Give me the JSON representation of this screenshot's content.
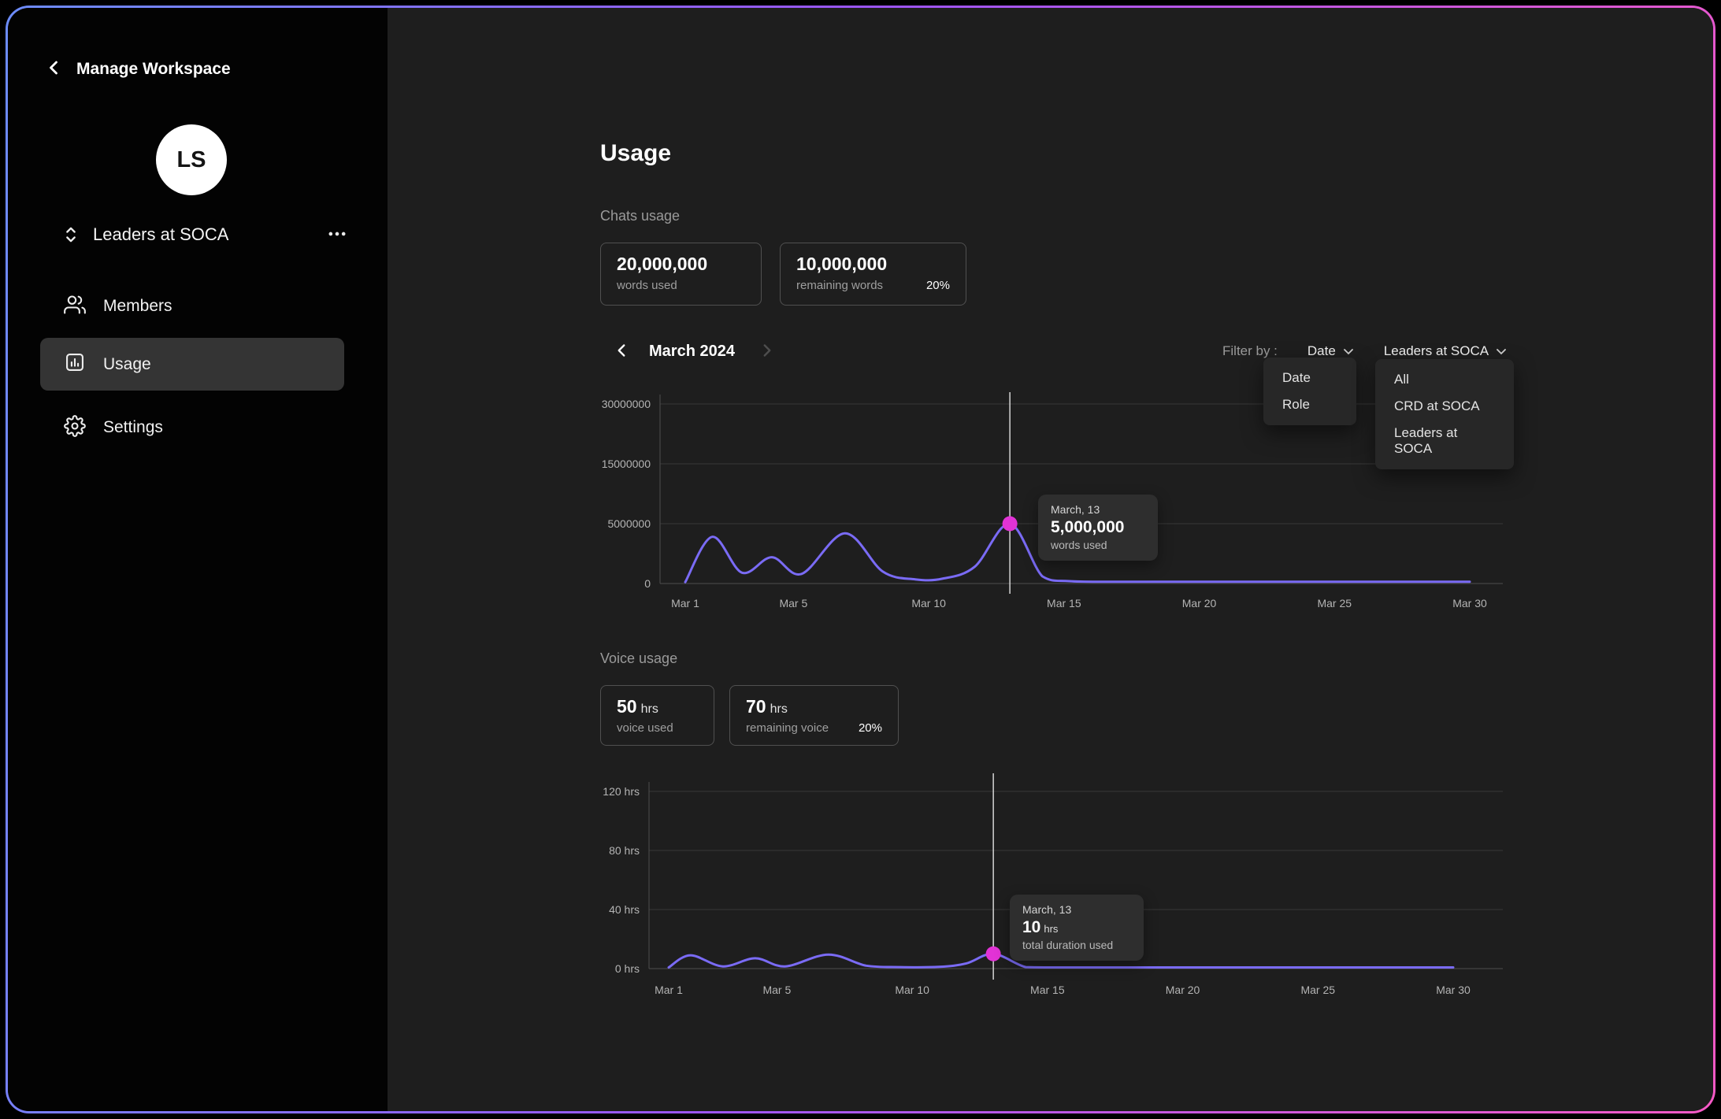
{
  "theme": {
    "frame_gradient": [
      "#6C8CFB",
      "#9A55F5",
      "#F659C6"
    ],
    "line_color": "#7A6BF5",
    "dot_color": "#E233D6",
    "sidebar_bg": "#030303",
    "content_bg": "#1E1E1E"
  },
  "sidebar": {
    "title": "Manage Workspace",
    "avatar_initials": "LS",
    "workspace": {
      "name": "Leaders at SOCA"
    },
    "items": [
      {
        "label": "Members",
        "icon": "users-icon",
        "selected": false
      },
      {
        "label": "Usage",
        "icon": "bar-chart-icon",
        "selected": true
      },
      {
        "label": "Settings",
        "icon": "gear-icon",
        "selected": false
      }
    ]
  },
  "main": {
    "title": "Usage",
    "chats_section": {
      "label": "Chats usage",
      "cards": [
        {
          "value": "20,000,000",
          "label": "words used"
        },
        {
          "value": "10,000,000",
          "label": "remaining words",
          "badge": "20%"
        }
      ]
    },
    "period": {
      "label": "March 2024"
    },
    "filter": {
      "label": "Filter by :",
      "selects": [
        {
          "value": "Date",
          "menu": [
            "Date",
            "Role"
          ]
        },
        {
          "value": "Leaders at SOCA",
          "menu": [
            "All",
            "CRD at SOCA",
            "Leaders at SOCA"
          ]
        }
      ]
    },
    "voice_section": {
      "label": "Voice usage",
      "cards": [
        {
          "value": "50",
          "unit": "hrs",
          "label": "voice used"
        },
        {
          "value": "70",
          "unit": "hrs",
          "label": "remaining voice",
          "badge": "20%"
        }
      ]
    }
  },
  "chart_data": [
    {
      "id": "chats-usage",
      "type": "line",
      "title": "March 2024",
      "legend_position": "none",
      "grid": "horizontal",
      "x_range": [
        1,
        30
      ],
      "x_tick_values": [
        1,
        5,
        10,
        15,
        20,
        25,
        30
      ],
      "x_tick_labels": [
        "Mar 1",
        "Mar 5",
        "Mar 10",
        "Mar 15",
        "Mar 20",
        "Mar 25",
        "Mar 30"
      ],
      "y_tick_values": [
        0,
        5000000,
        15000000,
        30000000
      ],
      "y_tick_labels": [
        "0",
        "5000000",
        "15000000",
        "30000000"
      ],
      "line_color": "#7A6BF5",
      "dot_color": "#E233D6",
      "series": [
        {
          "name": "words used",
          "x": [
            1,
            2,
            3.1,
            4.2,
            5.3,
            6.9,
            8.3,
            9.5,
            10.5,
            11.7,
            13,
            14.2,
            15.2,
            17,
            20,
            25,
            30
          ],
          "y": [
            120000,
            3900000,
            900000,
            2200000,
            800000,
            4200000,
            1000000,
            350000,
            400000,
            1400000,
            5000000,
            600000,
            200000,
            150000,
            150000,
            150000,
            150000
          ]
        }
      ],
      "highlight": {
        "x": 13,
        "y": 5000000,
        "date": "March, 13",
        "value": "5,000,000",
        "label": "words used"
      }
    },
    {
      "id": "voice-usage",
      "type": "line",
      "title": "",
      "legend_position": "none",
      "grid": "horizontal",
      "x_range": [
        1,
        30
      ],
      "x_tick_values": [
        1,
        5,
        10,
        15,
        20,
        25,
        30
      ],
      "x_tick_labels": [
        "Mar 1",
        "Mar 5",
        "Mar 10",
        "Mar 15",
        "Mar 20",
        "Mar 25",
        "Mar 30"
      ],
      "y_tick_values": [
        0,
        40,
        80,
        120
      ],
      "y_tick_labels": [
        "0 hrs",
        "40 hrs",
        "80 hrs",
        "120 hrs"
      ],
      "line_color": "#7A6BF5",
      "dot_color": "#E233D6",
      "series": [
        {
          "name": "total duration used",
          "x": [
            1,
            1.8,
            3,
            4.2,
            5.3,
            6.9,
            8.3,
            9.5,
            11,
            12,
            13,
            14.2,
            15.2,
            17,
            20,
            25,
            30
          ],
          "y": [
            0.3,
            9,
            1.5,
            7,
            1.5,
            9.5,
            2,
            1,
            1.2,
            3.5,
            10,
            1,
            0.5,
            0.4,
            0.4,
            0.4,
            0.4
          ]
        }
      ],
      "highlight": {
        "x": 13,
        "y": 10,
        "date": "March, 13",
        "value": "10",
        "unit": "hrs",
        "label": "total duration used"
      }
    }
  ]
}
